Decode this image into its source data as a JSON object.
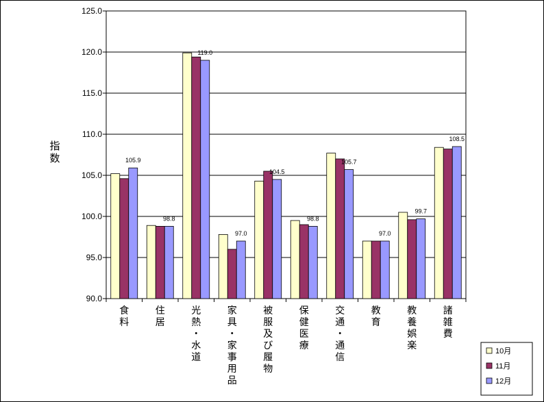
{
  "chart_data": {
    "type": "bar",
    "ylabel": "指数",
    "ylim": [
      90.0,
      125.0
    ],
    "yticks": [
      "90.0",
      "95.0",
      "100.0",
      "105.0",
      "110.0",
      "115.0",
      "120.0",
      "125.0"
    ],
    "grid": true,
    "legend_position": "bottom-right",
    "categories": [
      "食料",
      "住居",
      "光熱・水道",
      "家具・家事用品",
      "被服及び履物",
      "保健医療",
      "交通・通信",
      "教育",
      "教養娯楽",
      "諸雑費"
    ],
    "series": [
      {
        "name": "10月",
        "color": "#FFFFCC",
        "values": [
          105.2,
          98.9,
          119.9,
          97.8,
          104.3,
          99.5,
          107.7,
          97.0,
          100.5,
          108.4
        ]
      },
      {
        "name": "11月",
        "color": "#993366",
        "values": [
          104.6,
          98.8,
          119.4,
          96.0,
          105.5,
          99.0,
          107.0,
          97.0,
          99.6,
          108.2
        ]
      },
      {
        "name": "12月",
        "color": "#9999FF",
        "values": [
          105.9,
          98.8,
          119.0,
          97.0,
          104.5,
          98.8,
          105.7,
          97.0,
          99.7,
          108.5
        ]
      }
    ],
    "data_labels": {
      "series": "12月",
      "values": [
        "105.9",
        "98.8",
        "119.0",
        "97.0",
        "104.5",
        "98.8",
        "105.7",
        "97.0",
        "99.7",
        "108.5"
      ]
    }
  }
}
